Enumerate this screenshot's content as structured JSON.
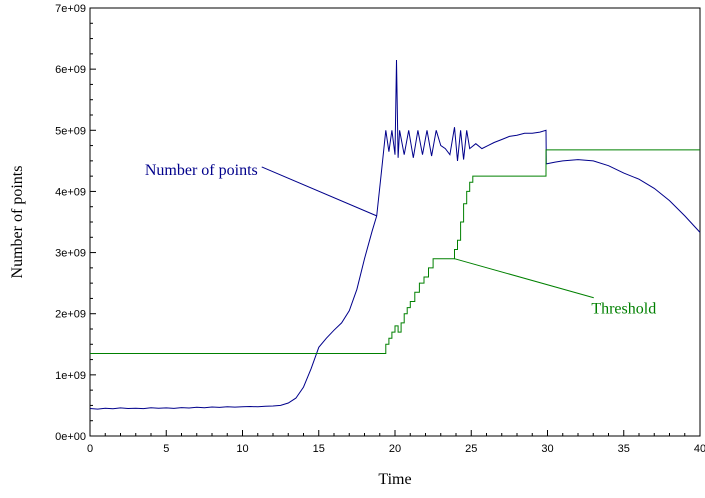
{
  "chart_data": {
    "type": "line",
    "title": "",
    "xlabel": "Time",
    "ylabel": "Number of points",
    "xlim": [
      0,
      40
    ],
    "ylim": [
      0,
      7000000000
    ],
    "xticks": [
      0,
      5,
      10,
      15,
      20,
      25,
      30,
      35,
      40
    ],
    "xtick_labels": [
      "0",
      "5",
      "10",
      "15",
      "20",
      "25",
      "30",
      "35",
      "40"
    ],
    "yticks": [
      0,
      1000000000,
      2000000000,
      3000000000,
      4000000000,
      5000000000,
      6000000000,
      7000000000
    ],
    "ytick_labels": [
      "0e+00",
      "1e+09",
      "2e+09",
      "3e+09",
      "4e+09",
      "5e+09",
      "6e+09",
      "7e+09"
    ],
    "grid": false,
    "colors": {
      "points": "#00008b",
      "threshold": "#008000"
    },
    "annotations": [
      {
        "text": "Number of points",
        "series": "points",
        "color": "#00008b",
        "text_x": 11.0,
        "text_y": 4270000000,
        "target_x": 18.8,
        "target_y": 3600000000
      },
      {
        "text": "Threshold",
        "series": "threshold",
        "color": "#008000",
        "text_x": 35.0,
        "text_y": 2000000000,
        "target_x": 23.9,
        "target_y": 2900000000
      }
    ],
    "series": [
      {
        "key": "points",
        "x": [
          0,
          0.5,
          1,
          1.5,
          2,
          2.5,
          3,
          3.5,
          4,
          4.5,
          5,
          5.5,
          6,
          6.5,
          7,
          7.5,
          8,
          8.5,
          9,
          9.5,
          10,
          10.5,
          11,
          11.5,
          12,
          12.5,
          13,
          13.5,
          14,
          14.5,
          15,
          15.5,
          16,
          16.5,
          17,
          17.5,
          18,
          18.5,
          18.8,
          19.1,
          19.4,
          19.6,
          19.8,
          20.0,
          20.1,
          20.2,
          20.3,
          20.6,
          20.9,
          21.2,
          21.5,
          21.8,
          22.1,
          22.4,
          22.7,
          23.0,
          23.3,
          23.6,
          23.9,
          24.1,
          24.3,
          24.5,
          24.7,
          24.9,
          25.3,
          25.7,
          26.1,
          26.5,
          27,
          27.5,
          28,
          28.5,
          29,
          29.5,
          29.9,
          29.92,
          30.5,
          31,
          32,
          33,
          34,
          35,
          36,
          37,
          38,
          39,
          40
        ],
        "y": [
          450000000,
          440000000,
          455000000,
          445000000,
          460000000,
          450000000,
          455000000,
          448000000,
          462000000,
          455000000,
          460000000,
          452000000,
          465000000,
          458000000,
          470000000,
          462000000,
          475000000,
          468000000,
          480000000,
          472000000,
          478000000,
          482000000,
          478000000,
          488000000,
          490000000,
          500000000,
          540000000,
          620000000,
          800000000,
          1100000000,
          1450000000,
          1600000000,
          1730000000,
          1850000000,
          2050000000,
          2400000000,
          2900000000,
          3350000000,
          3600000000,
          4300000000,
          5000000000,
          4650000000,
          5000000000,
          4600000000,
          6150000000,
          4550000000,
          5000000000,
          4600000000,
          5000000000,
          4550000000,
          5000000000,
          4600000000,
          5000000000,
          4580000000,
          5000000000,
          4750000000,
          4700000000,
          4600000000,
          5050000000,
          4500000000,
          5000000000,
          4520000000,
          5000000000,
          4700000000,
          4780000000,
          4700000000,
          4750000000,
          4800000000,
          4850000000,
          4900000000,
          4920000000,
          4950000000,
          4950000000,
          4970000000,
          5000000000,
          4450000000,
          4480000000,
          4500000000,
          4520000000,
          4500000000,
          4420000000,
          4300000000,
          4200000000,
          4050000000,
          3850000000,
          3600000000,
          3330000000
        ]
      },
      {
        "key": "threshold",
        "x": [
          0,
          19.4,
          19.4,
          19.6,
          19.6,
          19.8,
          19.8,
          20.0,
          20.0,
          20.2,
          20.2,
          20.4,
          20.4,
          20.6,
          20.6,
          20.8,
          20.8,
          21.0,
          21.0,
          21.3,
          21.3,
          21.6,
          21.6,
          21.9,
          21.9,
          22.2,
          22.2,
          22.5,
          22.5,
          22.8,
          22.8,
          23.9,
          23.9,
          24.1,
          24.1,
          24.3,
          24.3,
          24.5,
          24.5,
          24.7,
          24.7,
          24.9,
          24.9,
          25.1,
          25.1,
          29.9,
          29.9,
          40
        ],
        "y": [
          1350000000,
          1350000000,
          1500000000,
          1500000000,
          1600000000,
          1600000000,
          1700000000,
          1700000000,
          1800000000,
          1800000000,
          1700000000,
          1700000000,
          1850000000,
          1850000000,
          2000000000,
          2000000000,
          2100000000,
          2100000000,
          2200000000,
          2200000000,
          2350000000,
          2350000000,
          2500000000,
          2500000000,
          2600000000,
          2600000000,
          2750000000,
          2750000000,
          2900000000,
          2900000000,
          2900000000,
          2900000000,
          3050000000,
          3050000000,
          3200000000,
          3200000000,
          3500000000,
          3500000000,
          3800000000,
          3800000000,
          4000000000,
          4000000000,
          4150000000,
          4150000000,
          4250000000,
          4250000000,
          4680000000,
          4680000000
        ]
      }
    ]
  }
}
